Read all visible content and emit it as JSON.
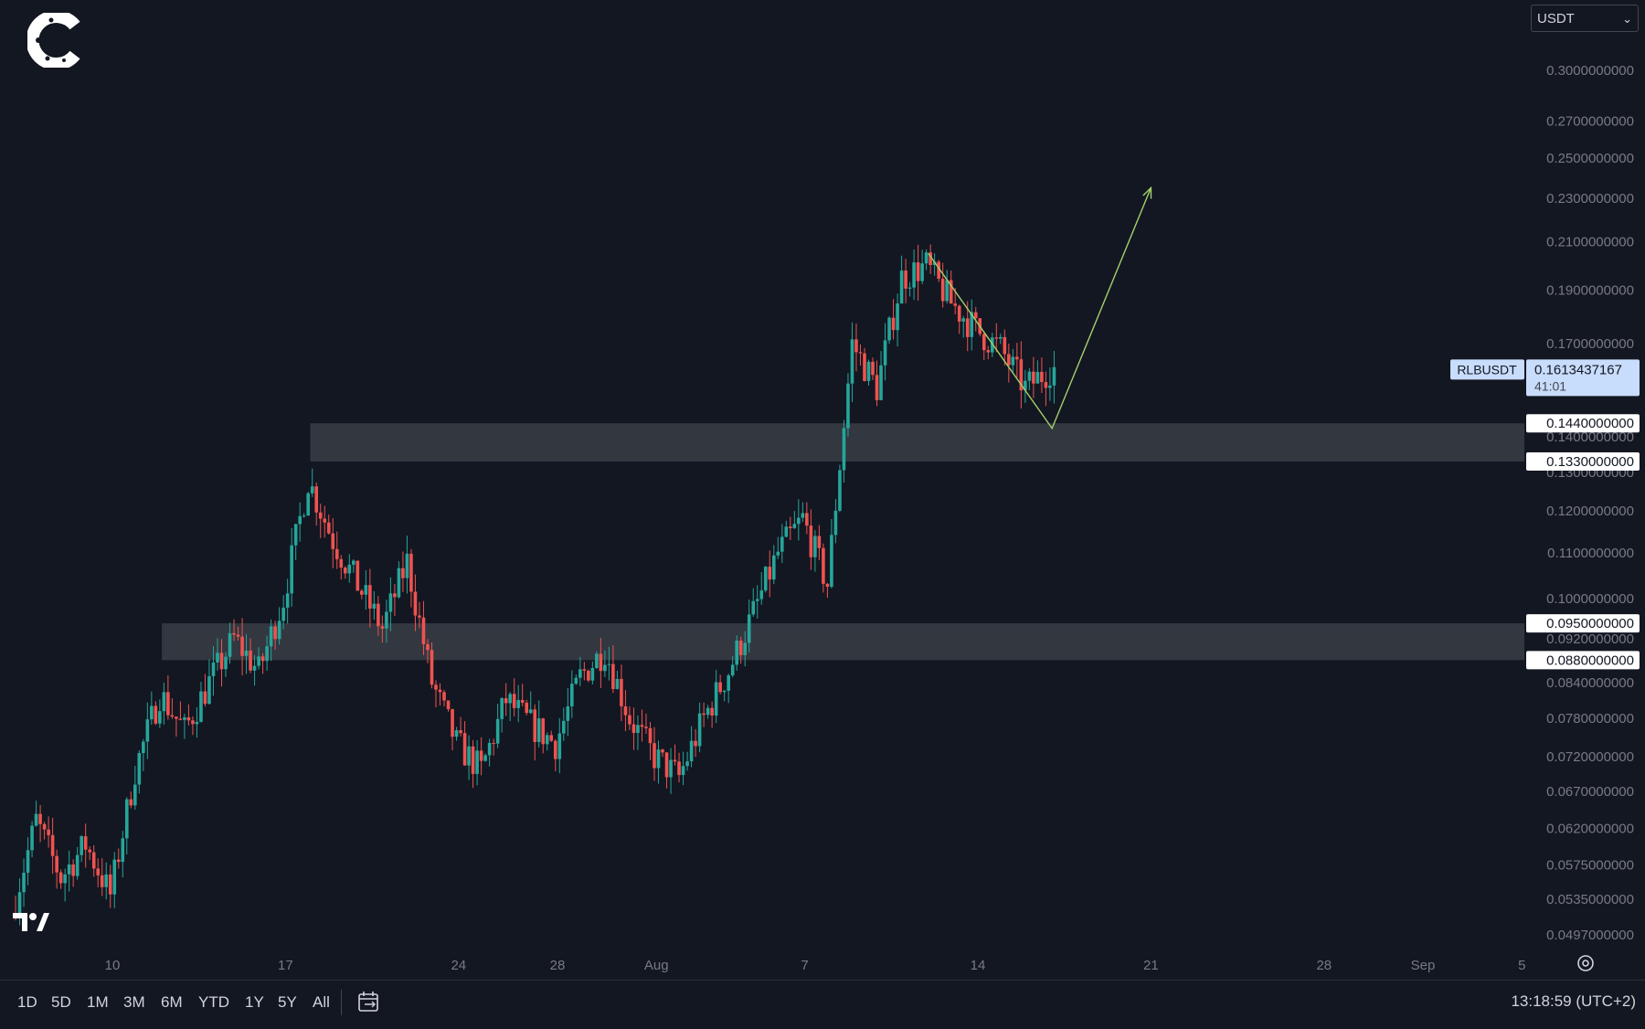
{
  "app": {
    "currency_select": "USDT",
    "timestamp": "13:18:59 (UTC+2)",
    "range_buttons": [
      "1D",
      "5D",
      "1M",
      "3M",
      "6M",
      "YTD",
      "1Y",
      "5Y",
      "All"
    ],
    "icons": [
      "brand-logo-icon",
      "tradingview-logo-icon",
      "calendar-range-icon",
      "settings-icon",
      "chevron-down-icon"
    ]
  },
  "chart_data": {
    "type": "candlestick",
    "symbol": "RLBUSDT",
    "last_price": "0.1613437167",
    "countdown": "41:01",
    "colors": {
      "background": "#131722",
      "up": "#26a69a",
      "down": "#ef5350",
      "zone": "#3a3d45",
      "trendline": "#a5d16b",
      "tag_blue": "#c8dcfb",
      "grid_text": "#787b86"
    },
    "y_tick_labels": [
      "0.3000000000",
      "0.2700000000",
      "0.2500000000",
      "0.2300000000",
      "0.2100000000",
      "0.1900000000",
      "0.1700000000",
      "0.1400000000",
      "0.1300000000",
      "0.1200000000",
      "0.1100000000",
      "0.1000000000",
      "0.0920000000",
      "0.0840000000",
      "0.0780000000",
      "0.0720000000",
      "0.0670000000",
      "0.0620000000",
      "0.0575000000",
      "0.0535000000",
      "0.0497000000"
    ],
    "x_tick_labels": [
      "10",
      "17",
      "24",
      "28",
      "Aug",
      "7",
      "14",
      "21",
      "28",
      "Sep",
      "5"
    ],
    "x_tick_dates": [
      "2023-07-10",
      "2023-07-17",
      "2023-07-24",
      "2023-07-28",
      "2023-08-01",
      "2023-08-07",
      "2023-08-14",
      "2023-08-21",
      "2023-08-28",
      "2023-09-01",
      "2023-09-05"
    ],
    "x_range": [
      "2023-07-06",
      "2023-09-09"
    ],
    "zones": [
      {
        "top": "0.1440000000",
        "bottom": "0.1330000000",
        "top_value": 0.144,
        "bottom_value": 0.133,
        "start": "2023-07-18"
      },
      {
        "top": "0.0950000000",
        "bottom": "0.0880000000",
        "top_value": 0.095,
        "bottom_value": 0.088,
        "start": "2023-07-12"
      }
    ],
    "trendline": [
      {
        "date": "2023-08-12",
        "value": 0.205
      },
      {
        "date": "2023-08-17",
        "value": 0.1425
      },
      {
        "date": "2023-08-21",
        "value": 0.235
      }
    ],
    "price_path": [
      [
        "2023-07-06",
        0.052
      ],
      [
        "2023-07-07",
        0.063
      ],
      [
        "2023-07-08",
        0.056
      ],
      [
        "2023-07-09",
        0.06
      ],
      [
        "2023-07-10",
        0.054
      ],
      [
        "2023-07-11",
        0.07
      ],
      [
        "2023-07-12",
        0.082
      ],
      [
        "2023-07-13",
        0.076
      ],
      [
        "2023-07-14",
        0.084
      ],
      [
        "2023-07-15",
        0.092
      ],
      [
        "2023-07-16",
        0.086
      ],
      [
        "2023-07-17",
        0.1
      ],
      [
        "2023-07-18",
        0.128
      ],
      [
        "2023-07-19",
        0.113
      ],
      [
        "2023-07-20",
        0.103
      ],
      [
        "2023-07-21",
        0.094
      ],
      [
        "2023-07-22",
        0.108
      ],
      [
        "2023-07-23",
        0.084
      ],
      [
        "2023-07-24",
        0.074
      ],
      [
        "2023-07-25",
        0.07
      ],
      [
        "2023-07-26",
        0.081
      ],
      [
        "2023-07-27",
        0.077
      ],
      [
        "2023-07-28",
        0.074
      ],
      [
        "2023-07-29",
        0.085
      ],
      [
        "2023-07-30",
        0.09
      ],
      [
        "2023-07-31",
        0.078
      ],
      [
        "2023-08-01",
        0.072
      ],
      [
        "2023-08-02",
        0.069
      ],
      [
        "2023-08-03",
        0.078
      ],
      [
        "2023-08-04",
        0.086
      ],
      [
        "2023-08-05",
        0.097
      ],
      [
        "2023-08-06",
        0.11
      ],
      [
        "2023-08-07",
        0.118
      ],
      [
        "2023-08-08",
        0.103
      ],
      [
        "2023-08-09",
        0.17
      ],
      [
        "2023-08-10",
        0.155
      ],
      [
        "2023-08-11",
        0.195
      ],
      [
        "2023-08-12",
        0.2
      ],
      [
        "2023-08-13",
        0.185
      ],
      [
        "2023-08-14",
        0.175
      ],
      [
        "2023-08-15",
        0.168
      ],
      [
        "2023-08-16",
        0.155
      ],
      [
        "2023-08-17",
        0.1613
      ]
    ]
  }
}
